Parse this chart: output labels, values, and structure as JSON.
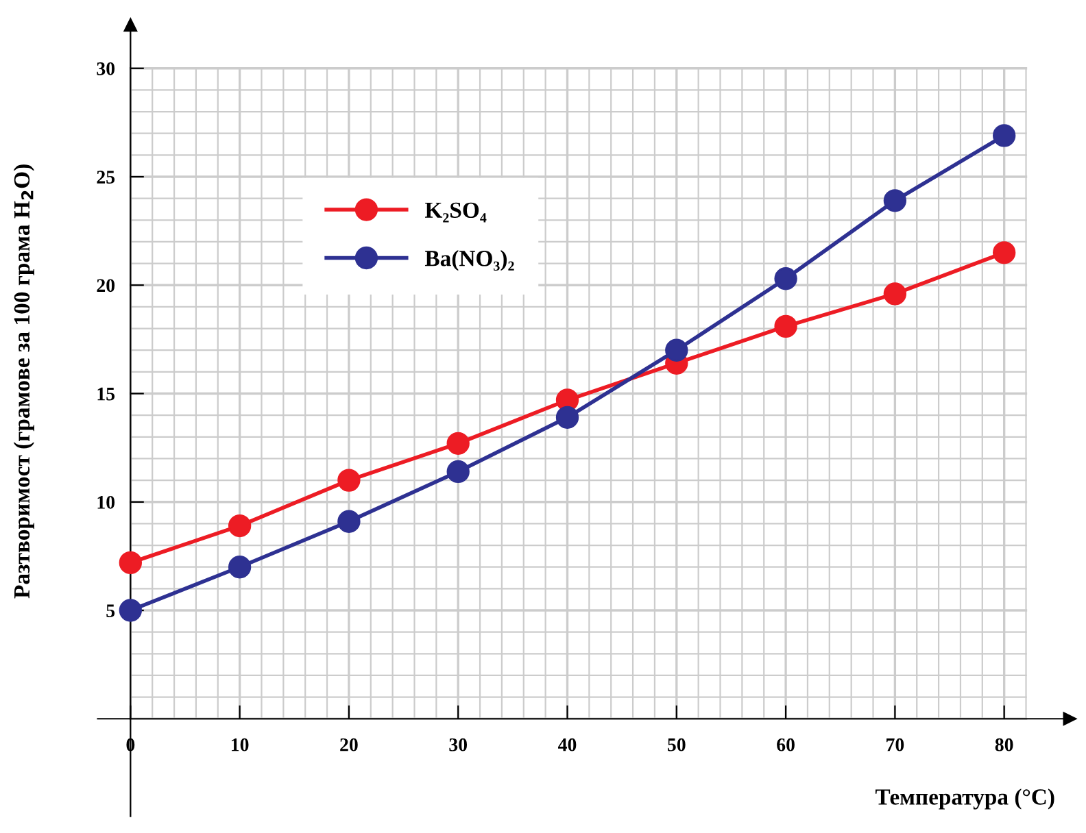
{
  "chart_data": {
    "type": "line",
    "xlabel": "Температура (°C)",
    "ylabel": "Разтворимост (грамове за 100 грама H$_{2}$O)",
    "x": [
      0,
      10,
      20,
      30,
      40,
      50,
      60,
      70,
      80
    ],
    "series": [
      {
        "name": "K₂SO₄",
        "color": "#ed1c24",
        "values": [
          7.2,
          8.9,
          11.0,
          12.7,
          14.7,
          16.4,
          18.1,
          19.6,
          21.5
        ]
      },
      {
        "name": "Ba(NO₃)₂",
        "color": "#2e3192",
        "values": [
          5.0,
          7.0,
          9.1,
          11.4,
          13.9,
          17.0,
          20.3,
          23.9,
          26.9
        ]
      }
    ],
    "xlim": [
      -3,
      86
    ],
    "ylim": [
      -4.5,
      32
    ],
    "xticks": [
      0,
      10,
      20,
      30,
      40,
      50,
      60,
      70,
      80
    ],
    "yticks": [
      5,
      10,
      15,
      20,
      25,
      30
    ],
    "grid": true,
    "legend": "top left",
    "marker": "circle",
    "line_style": "solid"
  }
}
